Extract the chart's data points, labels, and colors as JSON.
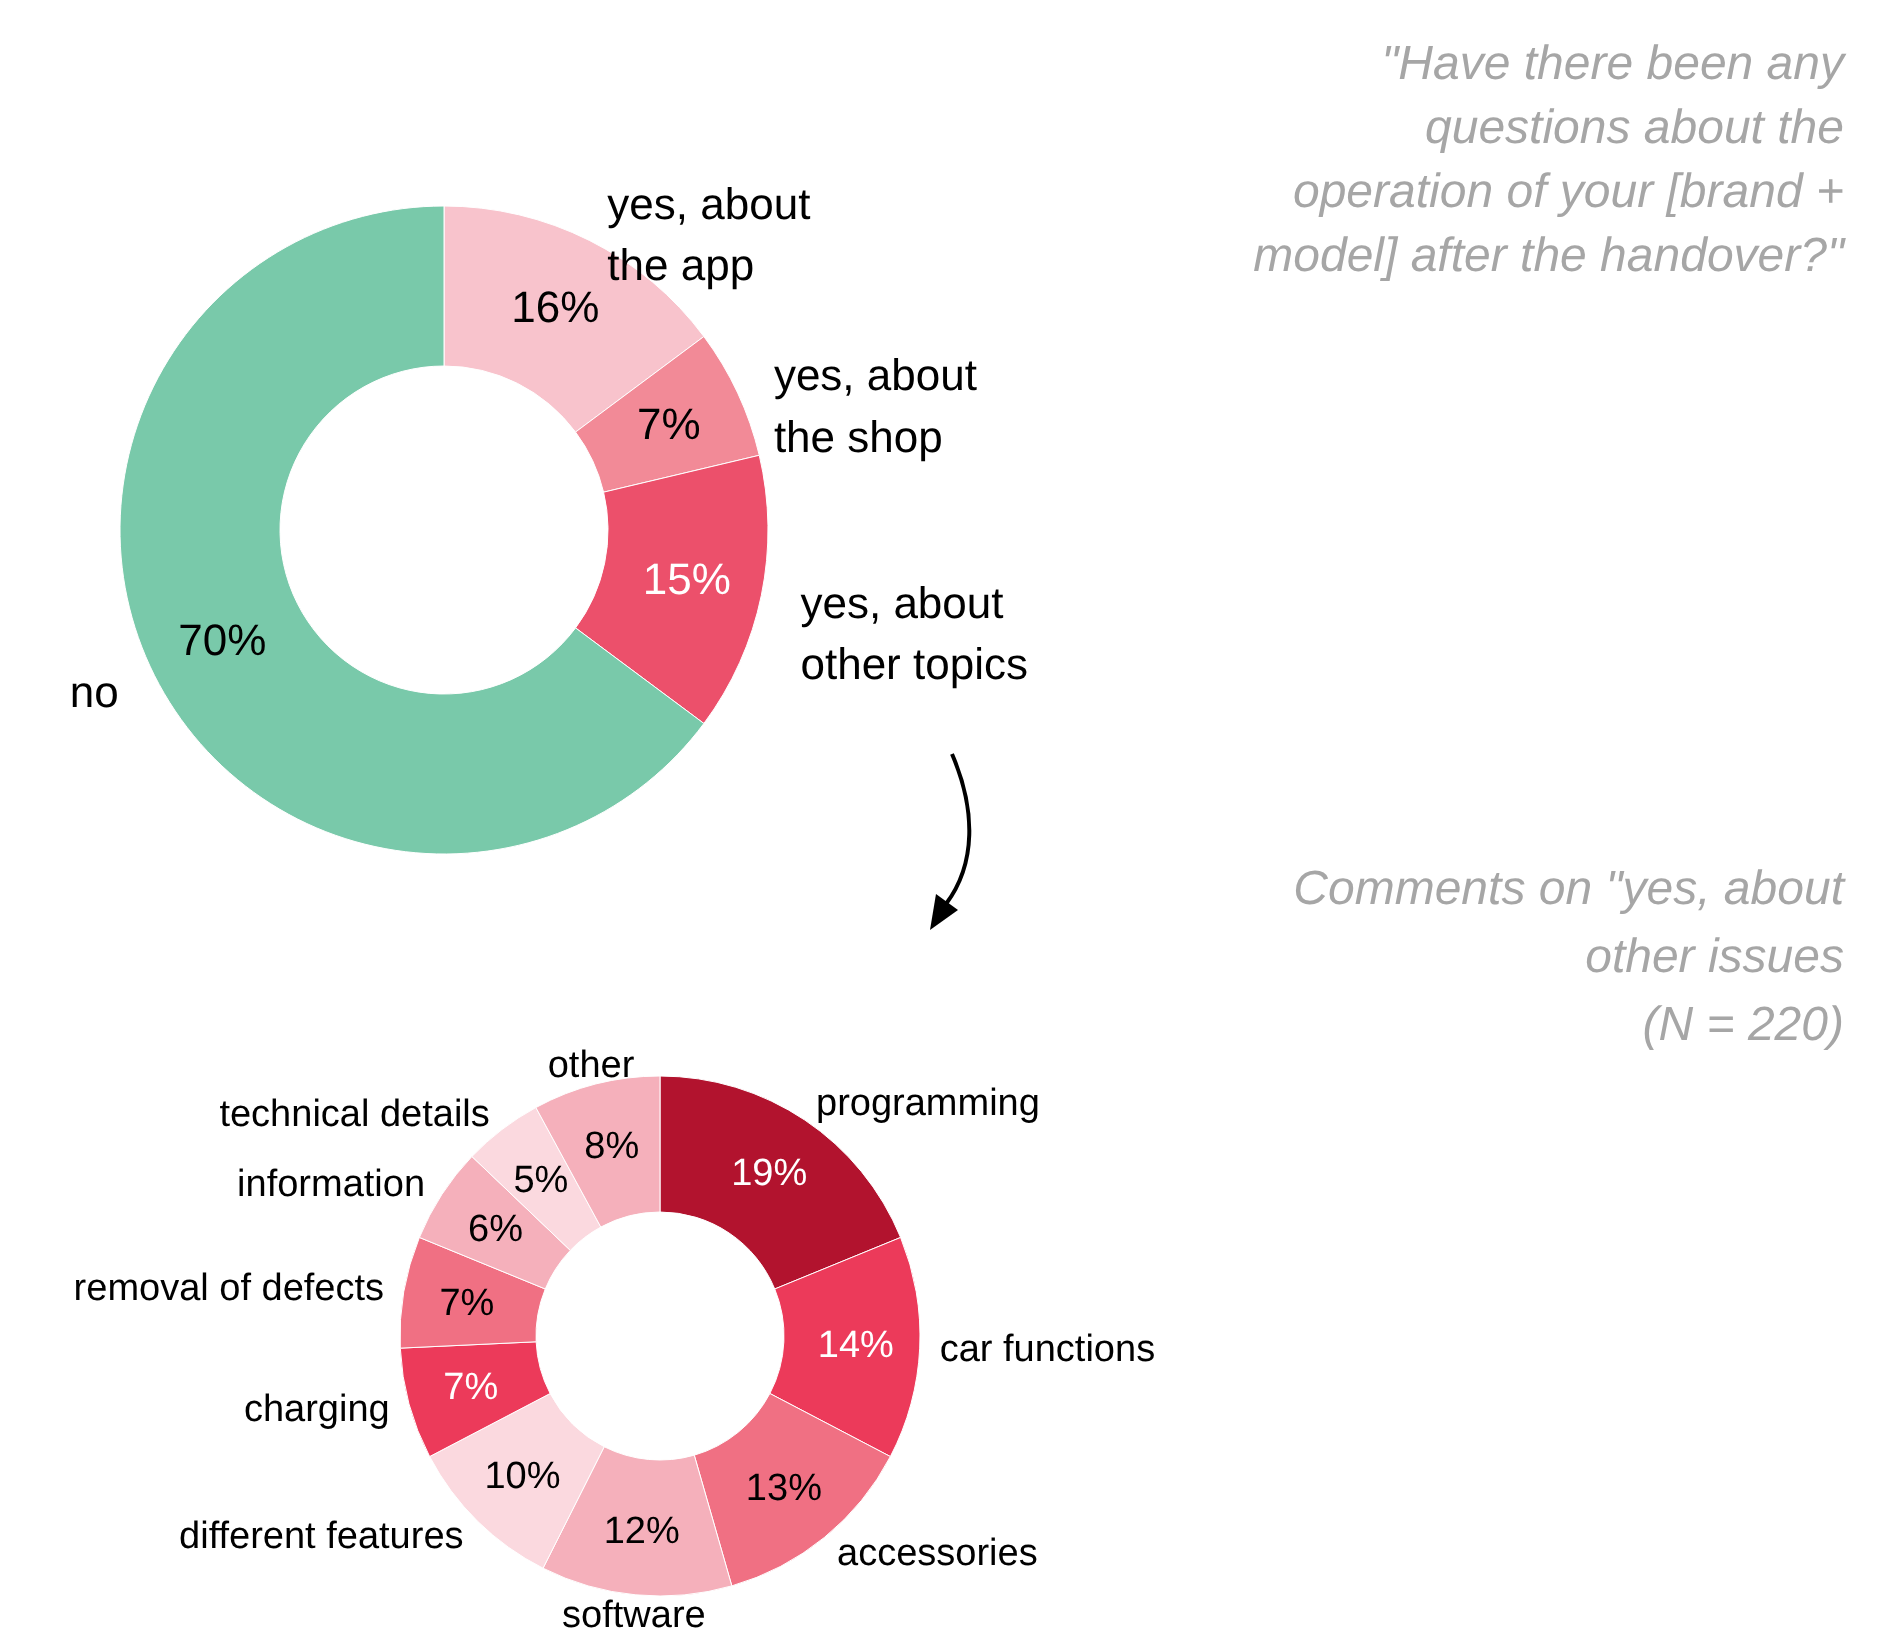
{
  "chart_data": [
    {
      "type": "donut",
      "title": "\"Have there been any questions about the operation of your [brand + model] after the handover?\"",
      "categories": [
        "yes, about the app",
        "yes, about the shop",
        "yes, about other topics",
        "no"
      ],
      "values": [
        16,
        7,
        15,
        70
      ],
      "colors": [
        "#f8c3cc",
        "#f28a97",
        "#ec506b",
        "#79c9aa"
      ],
      "value_labels": [
        "16%",
        "7%",
        "15%",
        "70%"
      ]
    },
    {
      "type": "donut",
      "title": "Comments on \"yes, about other issues (N = 220)",
      "categories": [
        "programming",
        "car functions",
        "accessories",
        "software",
        "different features",
        "charging",
        "removal of defects",
        "information",
        "technical details",
        "other"
      ],
      "values": [
        19,
        14,
        13,
        12,
        10,
        7,
        7,
        6,
        5,
        8
      ],
      "colors": [
        "#b2132e",
        "#ec3a5a",
        "#f07083",
        "#f5b0bb",
        "#fbd9df",
        "#ec3a5a",
        "#f07083",
        "#f5b0bb",
        "#fbd9df",
        "#f5b0bb"
      ],
      "value_labels": [
        "19%",
        "14%",
        "13%",
        "12%",
        "10%",
        "7%",
        "7%",
        "6%",
        "5%",
        "8%"
      ]
    }
  ]
}
